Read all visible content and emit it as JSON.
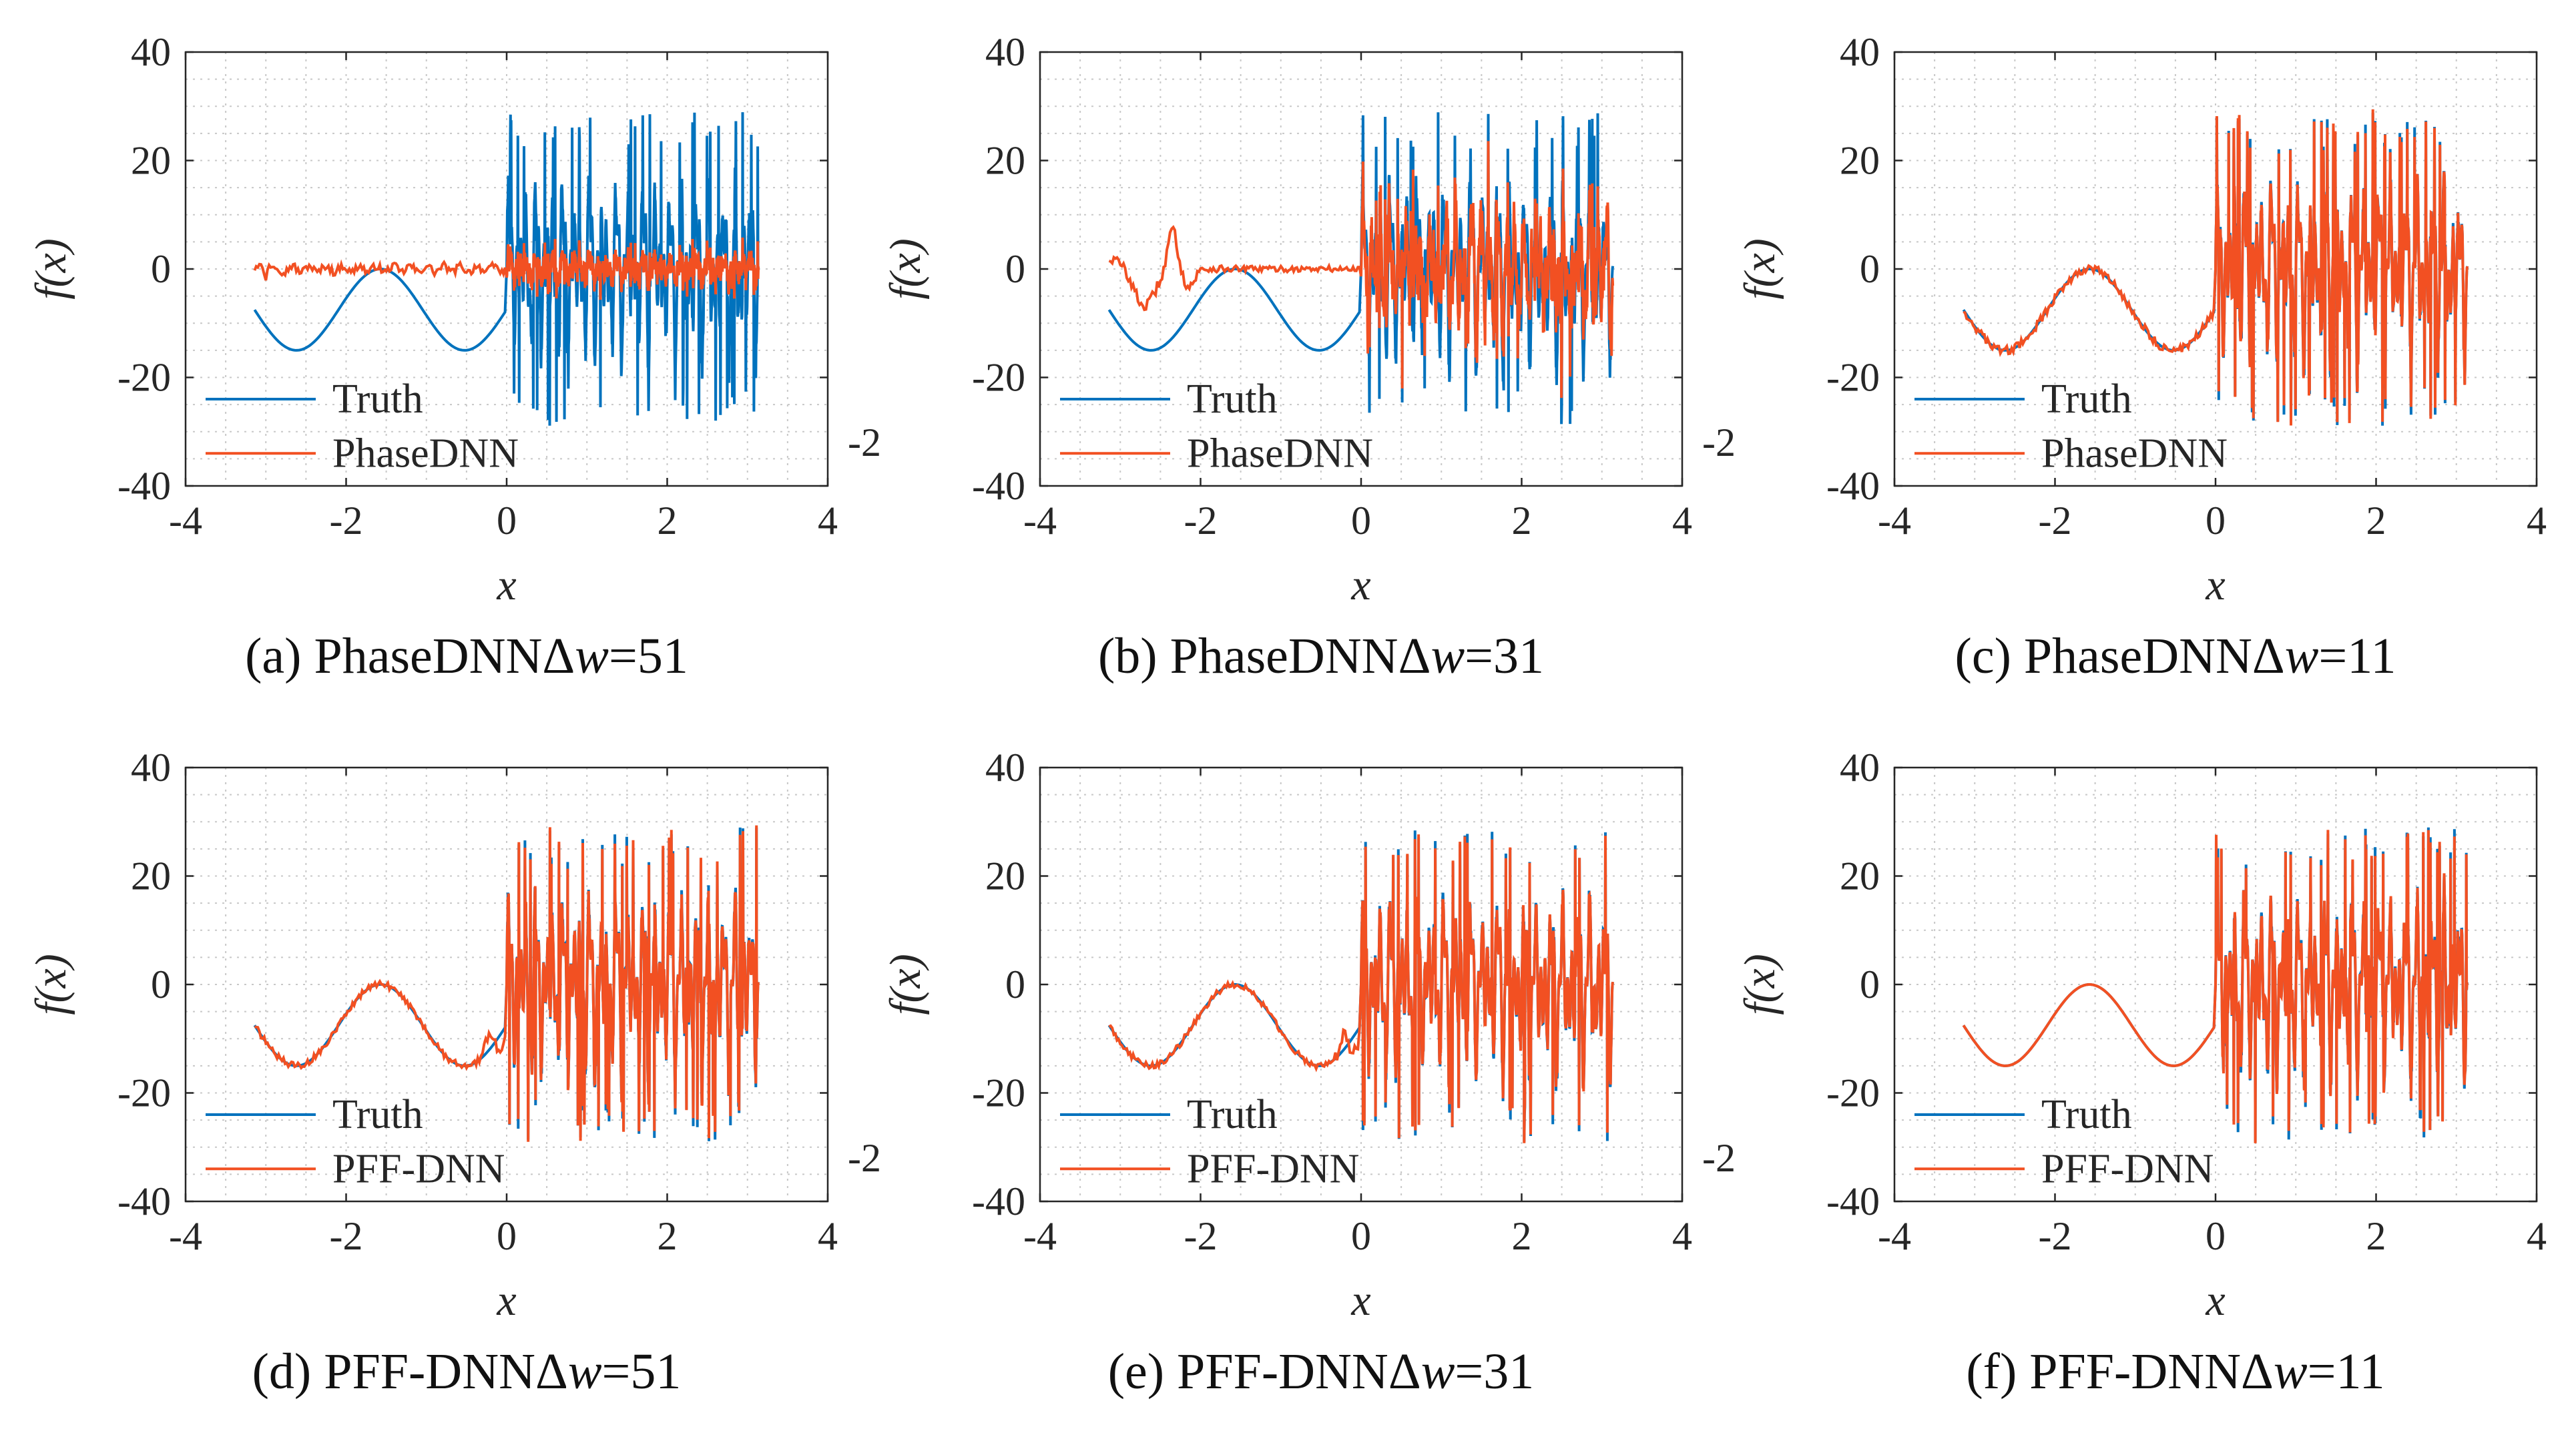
{
  "colors": {
    "truth": "#0072BD",
    "model": "#F25022",
    "axis": "#262626",
    "grid": "#c8c8c8"
  },
  "chart_data": [
    {
      "id": "a",
      "type": "line",
      "caption_prefix": "(a) ",
      "caption_name": "PhaseDNNΔ",
      "caption_var": "w",
      "caption_value": "=51",
      "xlabel": "x",
      "ylabel": "f(x)",
      "xlim": [
        -4,
        4
      ],
      "ylim": [
        -40,
        40
      ],
      "xticks": [
        -4,
        -2,
        0,
        2,
        4
      ],
      "yticks": [
        -40,
        -20,
        0,
        20,
        40
      ],
      "grid": true,
      "legend": "bottom-left",
      "series": [
        {
          "name": "Truth"
        },
        {
          "name": "PhaseDNN"
        }
      ],
      "fit": "poor",
      "stray_label": "-2"
    },
    {
      "id": "b",
      "type": "line",
      "caption_prefix": "(b) ",
      "caption_name": "PhaseDNNΔ",
      "caption_var": "w",
      "caption_value": "=31",
      "xlabel": "x",
      "ylabel": "f(x)",
      "xlim": [
        -4,
        4
      ],
      "ylim": [
        -40,
        40
      ],
      "xticks": [
        -4,
        -2,
        0,
        2,
        4
      ],
      "yticks": [
        -40,
        -20,
        0,
        20,
        40
      ],
      "grid": true,
      "legend": "bottom-left",
      "series": [
        {
          "name": "Truth"
        },
        {
          "name": "PhaseDNN"
        }
      ],
      "fit": "partial",
      "stray_label": "-2"
    },
    {
      "id": "c",
      "type": "line",
      "caption_prefix": "(c) ",
      "caption_name": "PhaseDNNΔ",
      "caption_var": "w",
      "caption_value": "=11",
      "xlabel": "x",
      "ylabel": "f(x)",
      "xlim": [
        -4,
        4
      ],
      "ylim": [
        -40,
        40
      ],
      "xticks": [
        -4,
        -2,
        0,
        2,
        4
      ],
      "yticks": [
        -40,
        -20,
        0,
        20,
        40
      ],
      "grid": true,
      "legend": "bottom-left",
      "series": [
        {
          "name": "Truth"
        },
        {
          "name": "PhaseDNN"
        }
      ],
      "fit": "good",
      "stray_label": ""
    },
    {
      "id": "d",
      "type": "line",
      "caption_prefix": "(d) ",
      "caption_name": "PFF-DNNΔ",
      "caption_var": "w",
      "caption_value": "=51",
      "xlabel": "x",
      "ylabel": "f(x)",
      "xlim": [
        -4,
        4
      ],
      "ylim": [
        -40,
        40
      ],
      "xticks": [
        -4,
        -2,
        0,
        2,
        4
      ],
      "yticks": [
        -40,
        -20,
        0,
        20,
        40
      ],
      "grid": true,
      "legend": "bottom-left",
      "series": [
        {
          "name": "Truth"
        },
        {
          "name": "PFF-DNN"
        }
      ],
      "fit": "good-bump",
      "stray_label": "-2"
    },
    {
      "id": "e",
      "type": "line",
      "caption_prefix": "(e) ",
      "caption_name": "PFF-DNNΔ",
      "caption_var": "w",
      "caption_value": "=31",
      "xlabel": "x",
      "ylabel": "f(x)",
      "xlim": [
        -4,
        4
      ],
      "ylim": [
        -40,
        40
      ],
      "xticks": [
        -4,
        -2,
        0,
        2,
        4
      ],
      "yticks": [
        -40,
        -20,
        0,
        20,
        40
      ],
      "grid": true,
      "legend": "bottom-left",
      "series": [
        {
          "name": "Truth"
        },
        {
          "name": "PFF-DNN"
        }
      ],
      "fit": "good-bump",
      "stray_label": "-2"
    },
    {
      "id": "f",
      "type": "line",
      "caption_prefix": "(f) ",
      "caption_name": "PFF-DNNΔ",
      "caption_var": "w",
      "caption_value": "=11",
      "xlabel": "x",
      "ylabel": "f(x)",
      "xlim": [
        -4,
        4
      ],
      "ylim": [
        -40,
        40
      ],
      "xticks": [
        -4,
        -2,
        0,
        2,
        4
      ],
      "yticks": [
        -40,
        -20,
        0,
        20,
        40
      ],
      "grid": true,
      "legend": "bottom-left",
      "series": [
        {
          "name": "Truth"
        },
        {
          "name": "PFF-DNN"
        }
      ],
      "fit": "perfect",
      "stray_label": ""
    }
  ]
}
